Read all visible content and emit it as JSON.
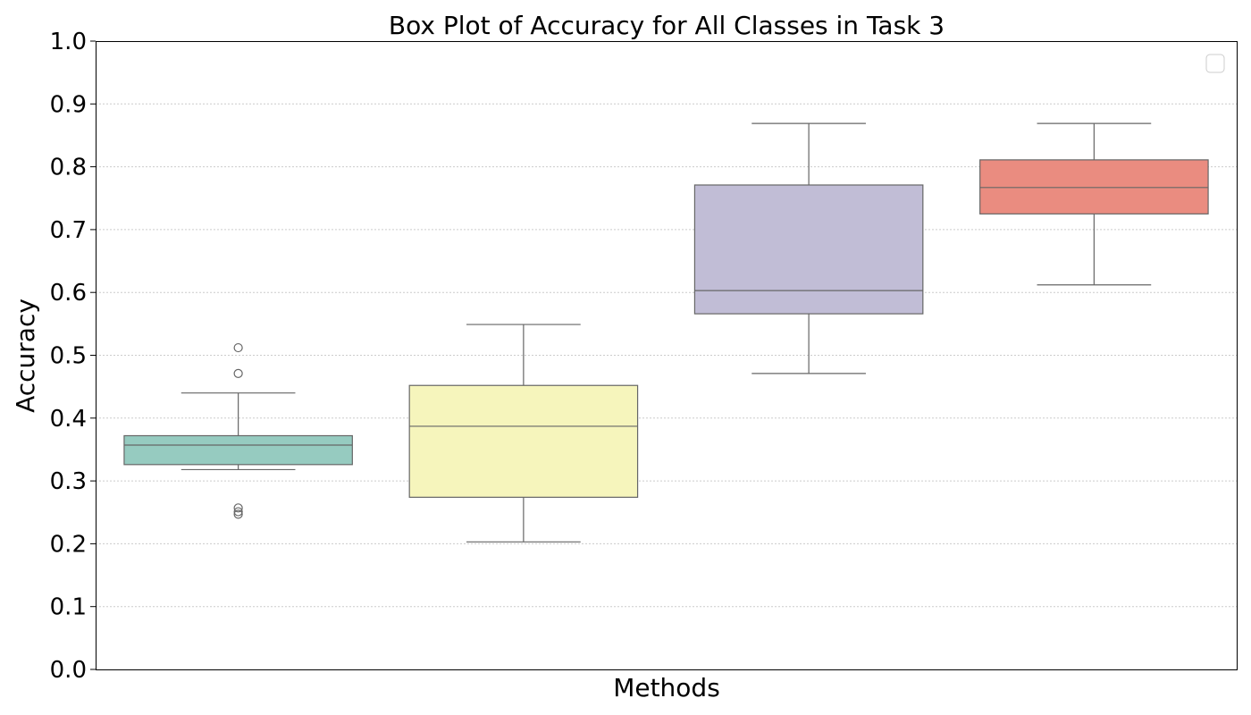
{
  "chart_data": {
    "type": "box",
    "title": "Box Plot of Accuracy for All Classes in Task 3",
    "xlabel": "Methods",
    "ylabel": "Accuracy",
    "ylim": [
      0,
      1
    ],
    "yticks": [
      "0.0",
      "0.1",
      "0.2",
      "0.3",
      "0.4",
      "0.5",
      "0.6",
      "0.7",
      "0.8",
      "0.9",
      "1.0"
    ],
    "grid": "horizontal dotted",
    "legend": "top-right (empty)",
    "series": [
      {
        "color": "#96cbc0",
        "whisker_low": 0.318,
        "q1": 0.326,
        "median": 0.357,
        "q3": 0.372,
        "whisker_high": 0.44,
        "outliers": [
          0.512,
          0.471,
          0.257,
          0.251,
          0.247
        ]
      },
      {
        "color": "#f6f5bc",
        "whisker_low": 0.203,
        "q1": 0.274,
        "median": 0.387,
        "q3": 0.452,
        "whisker_high": 0.549,
        "outliers": []
      },
      {
        "color": "#c1bdd6",
        "whisker_low": 0.471,
        "q1": 0.566,
        "median": 0.603,
        "q3": 0.771,
        "whisker_high": 0.869,
        "outliers": []
      },
      {
        "color": "#ea8c80",
        "whisker_low": 0.612,
        "q1": 0.725,
        "median": 0.767,
        "q3": 0.811,
        "whisker_high": 0.869,
        "outliers": []
      }
    ]
  }
}
